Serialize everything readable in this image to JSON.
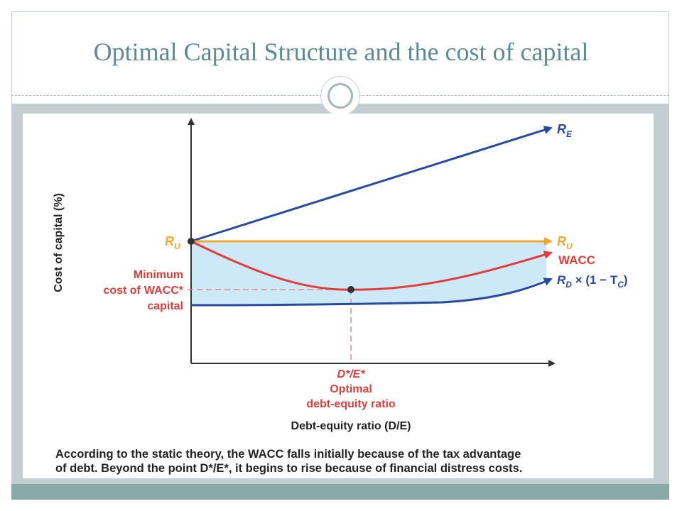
{
  "slide": {
    "title": "Optimal Capital Structure and the cost of capital"
  },
  "diagram": {
    "y_axis_label": "Cost of capital (%)",
    "x_axis_label": "Debt-equity ratio (D/E)",
    "curves": {
      "re": {
        "label": "R",
        "sub": "E",
        "color": "#2a4aa0"
      },
      "ru_left": {
        "label": "R",
        "sub": "U",
        "color": "#f0a830"
      },
      "ru_right": {
        "label": "R",
        "sub": "U",
        "color": "#f0a830"
      },
      "wacc": {
        "label": "WACC",
        "color": "#e03c3c"
      },
      "rd": {
        "label_main": "R",
        "label_sub": "D",
        "label_rest": " × (1 − T",
        "label_sub2": "C",
        "label_close": ")",
        "color": "#2a4aa0"
      }
    },
    "min_note": {
      "line1": "Minimum",
      "line2": "cost of",
      "line2b": "WACC*",
      "line3": "capital"
    },
    "optimum": {
      "line1": "D*/E*",
      "line2": "Optimal",
      "line3": "debt-equity ratio"
    },
    "region_fill": "#cde9f7",
    "caption": {
      "line1": "According to the static theory, the WACC falls initially because of the tax advantage",
      "line2": "of debt. Beyond the point D*/E*, it begins to rise because of financial distress costs."
    }
  }
}
